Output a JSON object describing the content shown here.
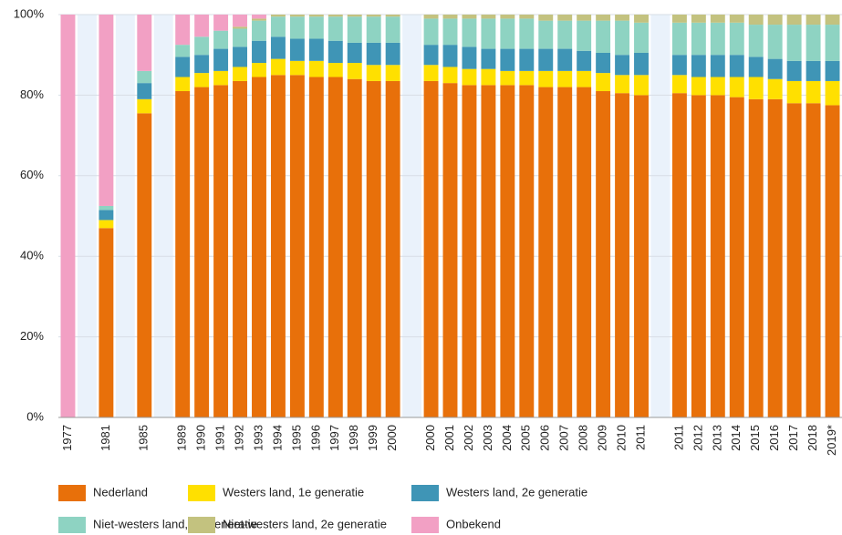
{
  "chart_data": {
    "type": "bar",
    "stacked": true,
    "categories": [
      "1977",
      null,
      "1981",
      null,
      "1985",
      null,
      "1989",
      "1990",
      "1991",
      "1992",
      "1993",
      "1994",
      "1995",
      "1996",
      "1997",
      "1998",
      "1999",
      "2000",
      null,
      "2000",
      "2001",
      "2002",
      "2003",
      "2004",
      "2005",
      "2006",
      "2007",
      "2008",
      "2009",
      "2010",
      "2011",
      null,
      "2011",
      "2012",
      "2013",
      "2014",
      "2015",
      "2016",
      "2017",
      "2018",
      "2019*"
    ],
    "series": [
      {
        "name": "Nederland",
        "color": "#e8700a",
        "values": [
          0,
          null,
          47,
          null,
          75.5,
          null,
          81,
          82,
          82.5,
          83.5,
          84.5,
          85,
          85,
          84.5,
          84.5,
          84,
          83.5,
          83.5,
          null,
          83.5,
          83,
          82.5,
          82.5,
          82.5,
          82.5,
          82,
          82,
          82,
          81,
          80.5,
          80,
          null,
          80.5,
          80,
          80,
          79.5,
          79,
          79,
          78,
          78,
          77.5
        ]
      },
      {
        "name": "Westers land, 1e generatie",
        "color": "#ffe000",
        "values": [
          0,
          null,
          2,
          null,
          3.5,
          null,
          3.5,
          3.5,
          3.5,
          3.5,
          3.5,
          4,
          3.5,
          4,
          3.5,
          4,
          4,
          4,
          null,
          4,
          4,
          4,
          4,
          3.5,
          3.5,
          4,
          4,
          4,
          4.5,
          4.5,
          5,
          null,
          4.5,
          4.5,
          4.5,
          5,
          5.5,
          5,
          5.5,
          5.5,
          6
        ]
      },
      {
        "name": "Westers land, 2e generatie",
        "color": "#3f95b6",
        "values": [
          0,
          null,
          2.5,
          null,
          4,
          null,
          5,
          4.5,
          5.5,
          5,
          5.5,
          5.5,
          5.5,
          5.5,
          5.5,
          5,
          5.5,
          5.5,
          null,
          5,
          5.5,
          5.5,
          5,
          5.5,
          5.5,
          5.5,
          5.5,
          5,
          5,
          5,
          5.5,
          null,
          5,
          5.5,
          5.5,
          5.5,
          5,
          5,
          5,
          5,
          5
        ]
      },
      {
        "name": "Niet-westers land, 1e generatie",
        "color": "#8ed3c2",
        "values": [
          0,
          null,
          1,
          null,
          3,
          null,
          3,
          4.5,
          4.5,
          4.5,
          5,
          5,
          5.5,
          5.5,
          6,
          6.5,
          6.5,
          6.5,
          null,
          6.5,
          6.5,
          7,
          7.5,
          7.5,
          7.5,
          7,
          7,
          7.5,
          8,
          8.5,
          7.5,
          null,
          8,
          8,
          8,
          8,
          8,
          8.5,
          9,
          9,
          9
        ]
      },
      {
        "name": "Niet-westers land, 2e generatie",
        "color": "#c3c27f",
        "values": [
          0,
          null,
          0,
          null,
          0,
          null,
          0,
          0,
          0,
          0.5,
          0.5,
          0.5,
          0.5,
          0.5,
          0.5,
          0.5,
          0.5,
          0.5,
          null,
          1,
          1,
          1,
          1,
          1,
          1,
          1.5,
          1.5,
          1.5,
          1.5,
          1.5,
          2,
          null,
          2,
          2,
          2,
          2,
          2.5,
          2.5,
          2.5,
          2.5,
          2.5
        ]
      },
      {
        "name": "Onbekend",
        "color": "#f2a0c4",
        "values": [
          100,
          null,
          47.5,
          null,
          14,
          null,
          7.5,
          5.5,
          4,
          3,
          1,
          0,
          0,
          0,
          0,
          0,
          0,
          0,
          null,
          0,
          0,
          0,
          0,
          0,
          0,
          0,
          0,
          0,
          0,
          0,
          0,
          null,
          0,
          0,
          0,
          0,
          0,
          0,
          0,
          0,
          0
        ]
      }
    ],
    "ylim": [
      0,
      100
    ],
    "yticks": [
      {
        "value": 0,
        "label": "0%"
      },
      {
        "value": 20,
        "label": "20%"
      },
      {
        "value": 40,
        "label": "40%"
      },
      {
        "value": 60,
        "label": "60%"
      },
      {
        "value": 80,
        "label": "80%"
      },
      {
        "value": 100,
        "label": "100%"
      }
    ],
    "grid": true
  }
}
